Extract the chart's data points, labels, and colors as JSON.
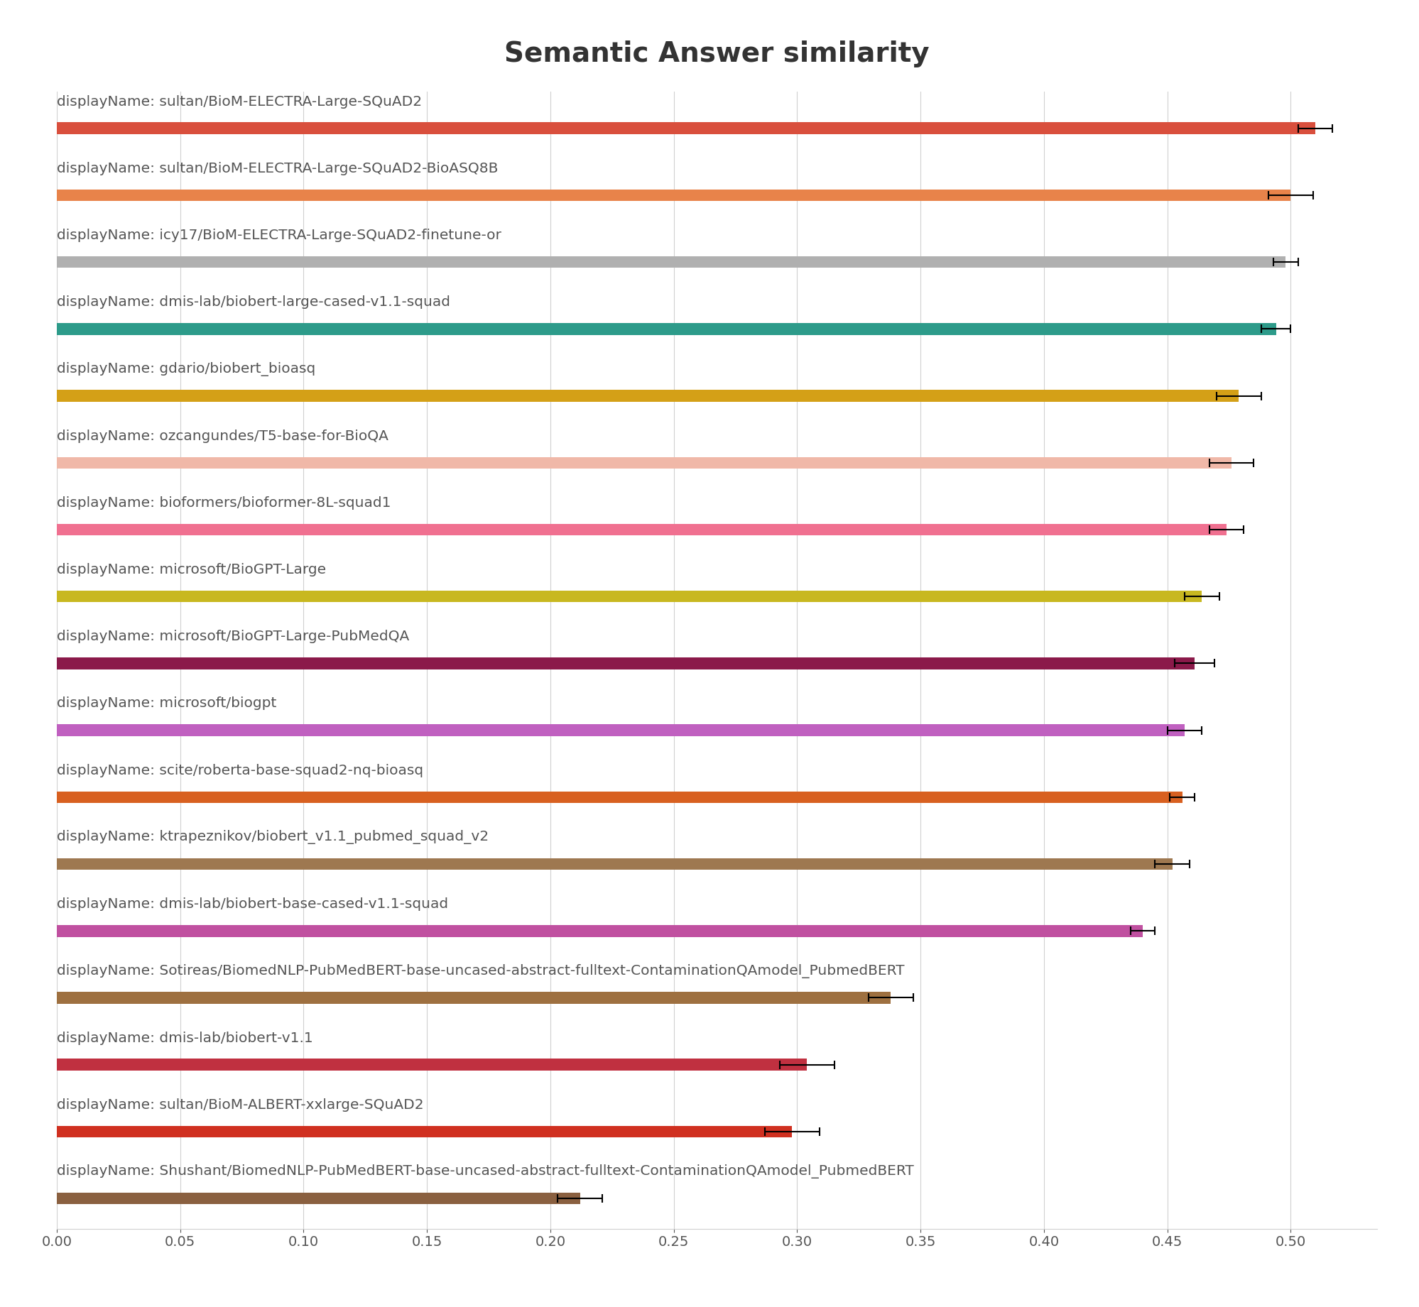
{
  "title": "Semantic Answer similarity",
  "title_fontsize": 28,
  "background_color": "#ffffff",
  "categories": [
    "displayName: sultan/BioM-ELECTRA-Large-SQuAD2",
    "displayName: sultan/BioM-ELECTRA-Large-SQuAD2-BioASQ8B",
    "displayName: icy17/BioM-ELECTRA-Large-SQuAD2-finetune-or",
    "displayName: dmis-lab/biobert-large-cased-v1.1-squad",
    "displayName: gdario/biobert_bioasq",
    "displayName: ozcangundes/T5-base-for-BioQA",
    "displayName: bioformers/bioformer-8L-squad1",
    "displayName: microsoft/BioGPT-Large",
    "displayName: microsoft/BioGPT-Large-PubMedQA",
    "displayName: microsoft/biogpt",
    "displayName: scite/roberta-base-squad2-nq-bioasq",
    "displayName: ktrapeznikov/biobert_v1.1_pubmed_squad_v2",
    "displayName: dmis-lab/biobert-base-cased-v1.1-squad",
    "displayName: Sotireas/BiomedNLP-PubMedBERT-base-uncased-abstract-fulltext-ContaminationQAmodel_PubmedBERT",
    "displayName: dmis-lab/biobert-v1.1",
    "displayName: sultan/BioM-ALBERT-xxlarge-SQuAD2",
    "displayName: Shushant/BiomedNLP-PubMedBERT-base-uncased-abstract-fulltext-ContaminationQAmodel_PubmedBERT"
  ],
  "values": [
    0.51,
    0.5,
    0.498,
    0.494,
    0.479,
    0.476,
    0.474,
    0.464,
    0.461,
    0.457,
    0.456,
    0.452,
    0.44,
    0.338,
    0.304,
    0.298,
    0.212
  ],
  "errors": [
    0.007,
    0.009,
    0.005,
    0.006,
    0.009,
    0.009,
    0.007,
    0.007,
    0.008,
    0.007,
    0.005,
    0.007,
    0.005,
    0.009,
    0.011,
    0.011,
    0.009
  ],
  "bar_colors": [
    "#d94f3d",
    "#e8834a",
    "#b0b0b0",
    "#2d9b8a",
    "#d4a017",
    "#f0b8a8",
    "#f07090",
    "#c8b820",
    "#8b1a4a",
    "#c060c0",
    "#d86020",
    "#9e7850",
    "#c050a0",
    "#9e7040",
    "#c03040",
    "#d03020",
    "#8a6040"
  ],
  "xlim": [
    0.0,
    0.535
  ],
  "xticks": [
    0.0,
    0.05,
    0.1,
    0.15,
    0.2,
    0.25,
    0.3,
    0.35,
    0.4,
    0.45,
    0.5
  ],
  "bar_height": 0.35,
  "label_fontsize": 14.5,
  "tick_fontsize": 14,
  "label_color": "#555555",
  "grid_color": "#d0d0d0",
  "title_color": "#333333"
}
